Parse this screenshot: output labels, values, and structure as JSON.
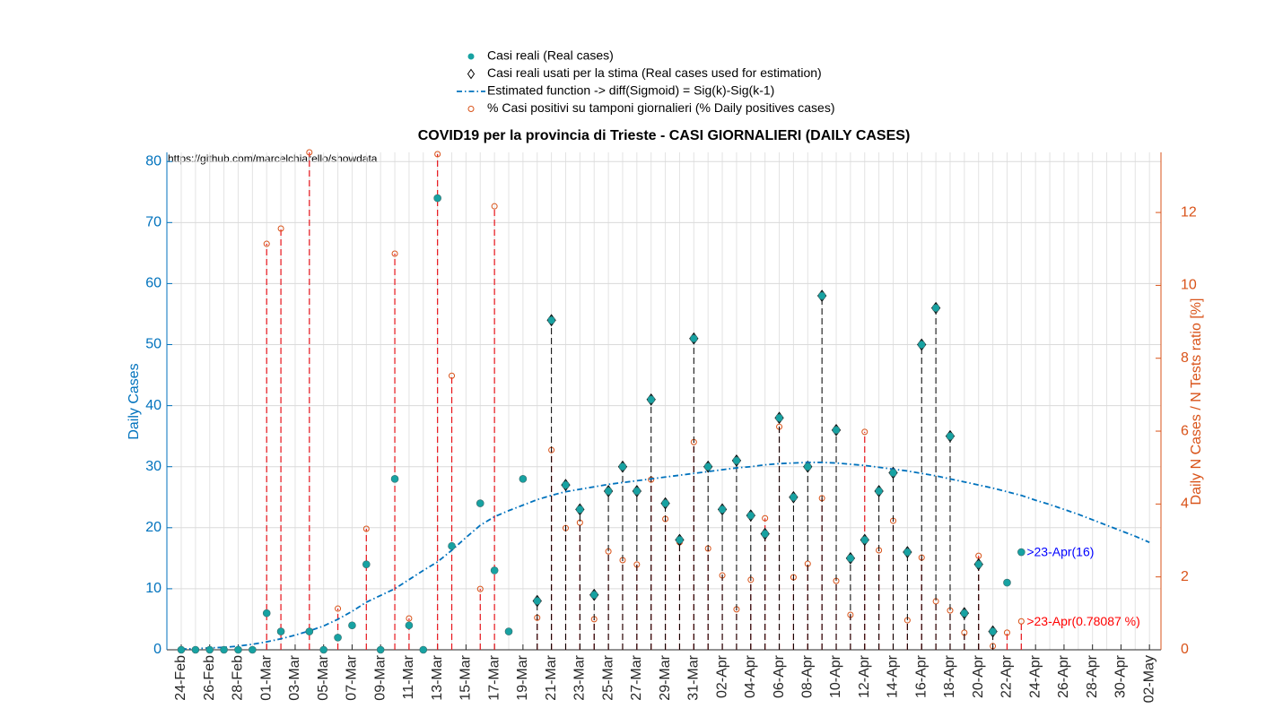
{
  "chart_data": {
    "type": "stem-combo",
    "title": "COVID19 per la provincia di Trieste - CASI GIORNALIERI (DAILY CASES)",
    "source": "https://github.com/marcelchiarello/showdata",
    "ylabel": "Daily Cases",
    "y2label": "Daily N Cases / N Tests ratio [%]",
    "categories": [
      "24-Feb",
      null,
      "26-Feb",
      null,
      "28-Feb",
      null,
      "01-Mar",
      null,
      "03-Mar",
      null,
      "05-Mar",
      null,
      "07-Mar",
      null,
      "09-Mar",
      null,
      "11-Mar",
      null,
      "13-Mar",
      null,
      "15-Mar",
      null,
      "17-Mar",
      null,
      "19-Mar",
      null,
      "21-Mar",
      null,
      "23-Mar",
      null,
      "25-Mar",
      null,
      "27-Mar",
      null,
      "29-Mar",
      null,
      "31-Mar",
      null,
      "02-Apr",
      null,
      "04-Apr",
      null,
      "06-Apr",
      null,
      "08-Apr",
      null,
      "10-Apr",
      null,
      "12-Apr",
      null,
      "14-Apr",
      null,
      "16-Apr",
      null,
      "18-Apr",
      null,
      "20-Apr",
      null,
      "22-Apr",
      null,
      "24-Apr",
      null,
      "26-Apr",
      null,
      "28-Apr",
      null,
      "30-Apr",
      null,
      "02-May"
    ],
    "ylim": [
      0,
      81.5
    ],
    "yticks": [
      0,
      10,
      20,
      30,
      40,
      50,
      60,
      70,
      80
    ],
    "y2lim": [
      0,
      13.65
    ],
    "y2ticks": [
      0,
      2,
      4,
      6,
      8,
      10,
      12
    ],
    "grid": true,
    "series": [
      {
        "name": "Casi reali (Real cases)",
        "color": "#17a2a2",
        "marker": "circle",
        "values": [
          0,
          0,
          0,
          0,
          0,
          0,
          6,
          3,
          null,
          3,
          0,
          2,
          4,
          14,
          0,
          28,
          4,
          0,
          74,
          17,
          null,
          24,
          13,
          3,
          28,
          8,
          54,
          27,
          23,
          9,
          26,
          30,
          26,
          41,
          24,
          18,
          51,
          30,
          23,
          31,
          22,
          19,
          38,
          25,
          30,
          58,
          36,
          15,
          18,
          26,
          29,
          16,
          50,
          56,
          35,
          6,
          14,
          3,
          11,
          16,
          null,
          null,
          null,
          null,
          null,
          null,
          null,
          null,
          null
        ]
      },
      {
        "name": "Casi reali usati per la stima (Real cases used for estimation)",
        "color": "#20b5b0",
        "marker": "diamond",
        "values": [
          null,
          null,
          null,
          null,
          null,
          null,
          null,
          null,
          null,
          null,
          null,
          null,
          null,
          null,
          null,
          null,
          null,
          null,
          null,
          null,
          null,
          null,
          null,
          null,
          null,
          8,
          54,
          27,
          23,
          9,
          26,
          30,
          26,
          41,
          24,
          18,
          51,
          30,
          23,
          31,
          22,
          19,
          38,
          25,
          30,
          58,
          36,
          15,
          18,
          26,
          29,
          16,
          50,
          56,
          35,
          6,
          14,
          3,
          null,
          null,
          null,
          null,
          null,
          null,
          null,
          null,
          null,
          null,
          null
        ]
      },
      {
        "name": "Estimated function -> diff(Sigmoid) = Sig(k)-Sig(k-1)",
        "color": "#0072bd",
        "marker": "line",
        "values": [
          0.1,
          0.2,
          0.3,
          0.4,
          0.6,
          0.9,
          1.3,
          1.8,
          2.4,
          3.1,
          3.9,
          5.0,
          6.3,
          7.8,
          8.9,
          10.0,
          11.5,
          13.0,
          14.4,
          16.3,
          18.4,
          20.4,
          21.8,
          22.8,
          23.7,
          24.6,
          25.3,
          25.9,
          26.3,
          26.7,
          27.1,
          27.4,
          27.7,
          28.0,
          28.3,
          28.6,
          28.9,
          29.2,
          29.5,
          29.8,
          30.0,
          30.3,
          30.5,
          30.6,
          30.7,
          30.7,
          30.6,
          30.4,
          30.2,
          29.9,
          29.6,
          29.3,
          28.9,
          28.5,
          28.0,
          27.5,
          27.0,
          26.5,
          25.9,
          25.3,
          24.5,
          23.8,
          23.0,
          22.2,
          21.3,
          20.4,
          19.5,
          18.6,
          17.6
        ]
      },
      {
        "name": "% Casi positivi su tamponi giornalieri (% Daily positives cases)",
        "color": "#d95319",
        "marker": "open-circle",
        "axis": "y2",
        "values": [
          null,
          null,
          null,
          null,
          null,
          null,
          11.14,
          11.56,
          null,
          13.65,
          null,
          1.13,
          null,
          3.32,
          null,
          10.87,
          0.86,
          null,
          13.6,
          7.52,
          null,
          1.67,
          12.17,
          null,
          null,
          0.88,
          5.48,
          3.34,
          3.49,
          0.84,
          2.7,
          2.46,
          2.34,
          4.67,
          3.59,
          2.95,
          5.7,
          2.78,
          2.04,
          1.11,
          1.92,
          3.61,
          6.12,
          1.99,
          2.36,
          4.16,
          1.89,
          0.96,
          5.98,
          2.73,
          3.54,
          0.81,
          2.53,
          1.33,
          1.08,
          0.47,
          2.58,
          0.1,
          0.47,
          0.78087,
          null,
          null,
          null,
          null,
          null,
          null,
          null,
          null,
          null
        ]
      }
    ],
    "annotations": [
      {
        "text": ">23-Apr(16)",
        "color": "#0000ff"
      },
      {
        "text": ">23-Apr(0.78087 %)",
        "color": "#ff0000"
      }
    ]
  }
}
